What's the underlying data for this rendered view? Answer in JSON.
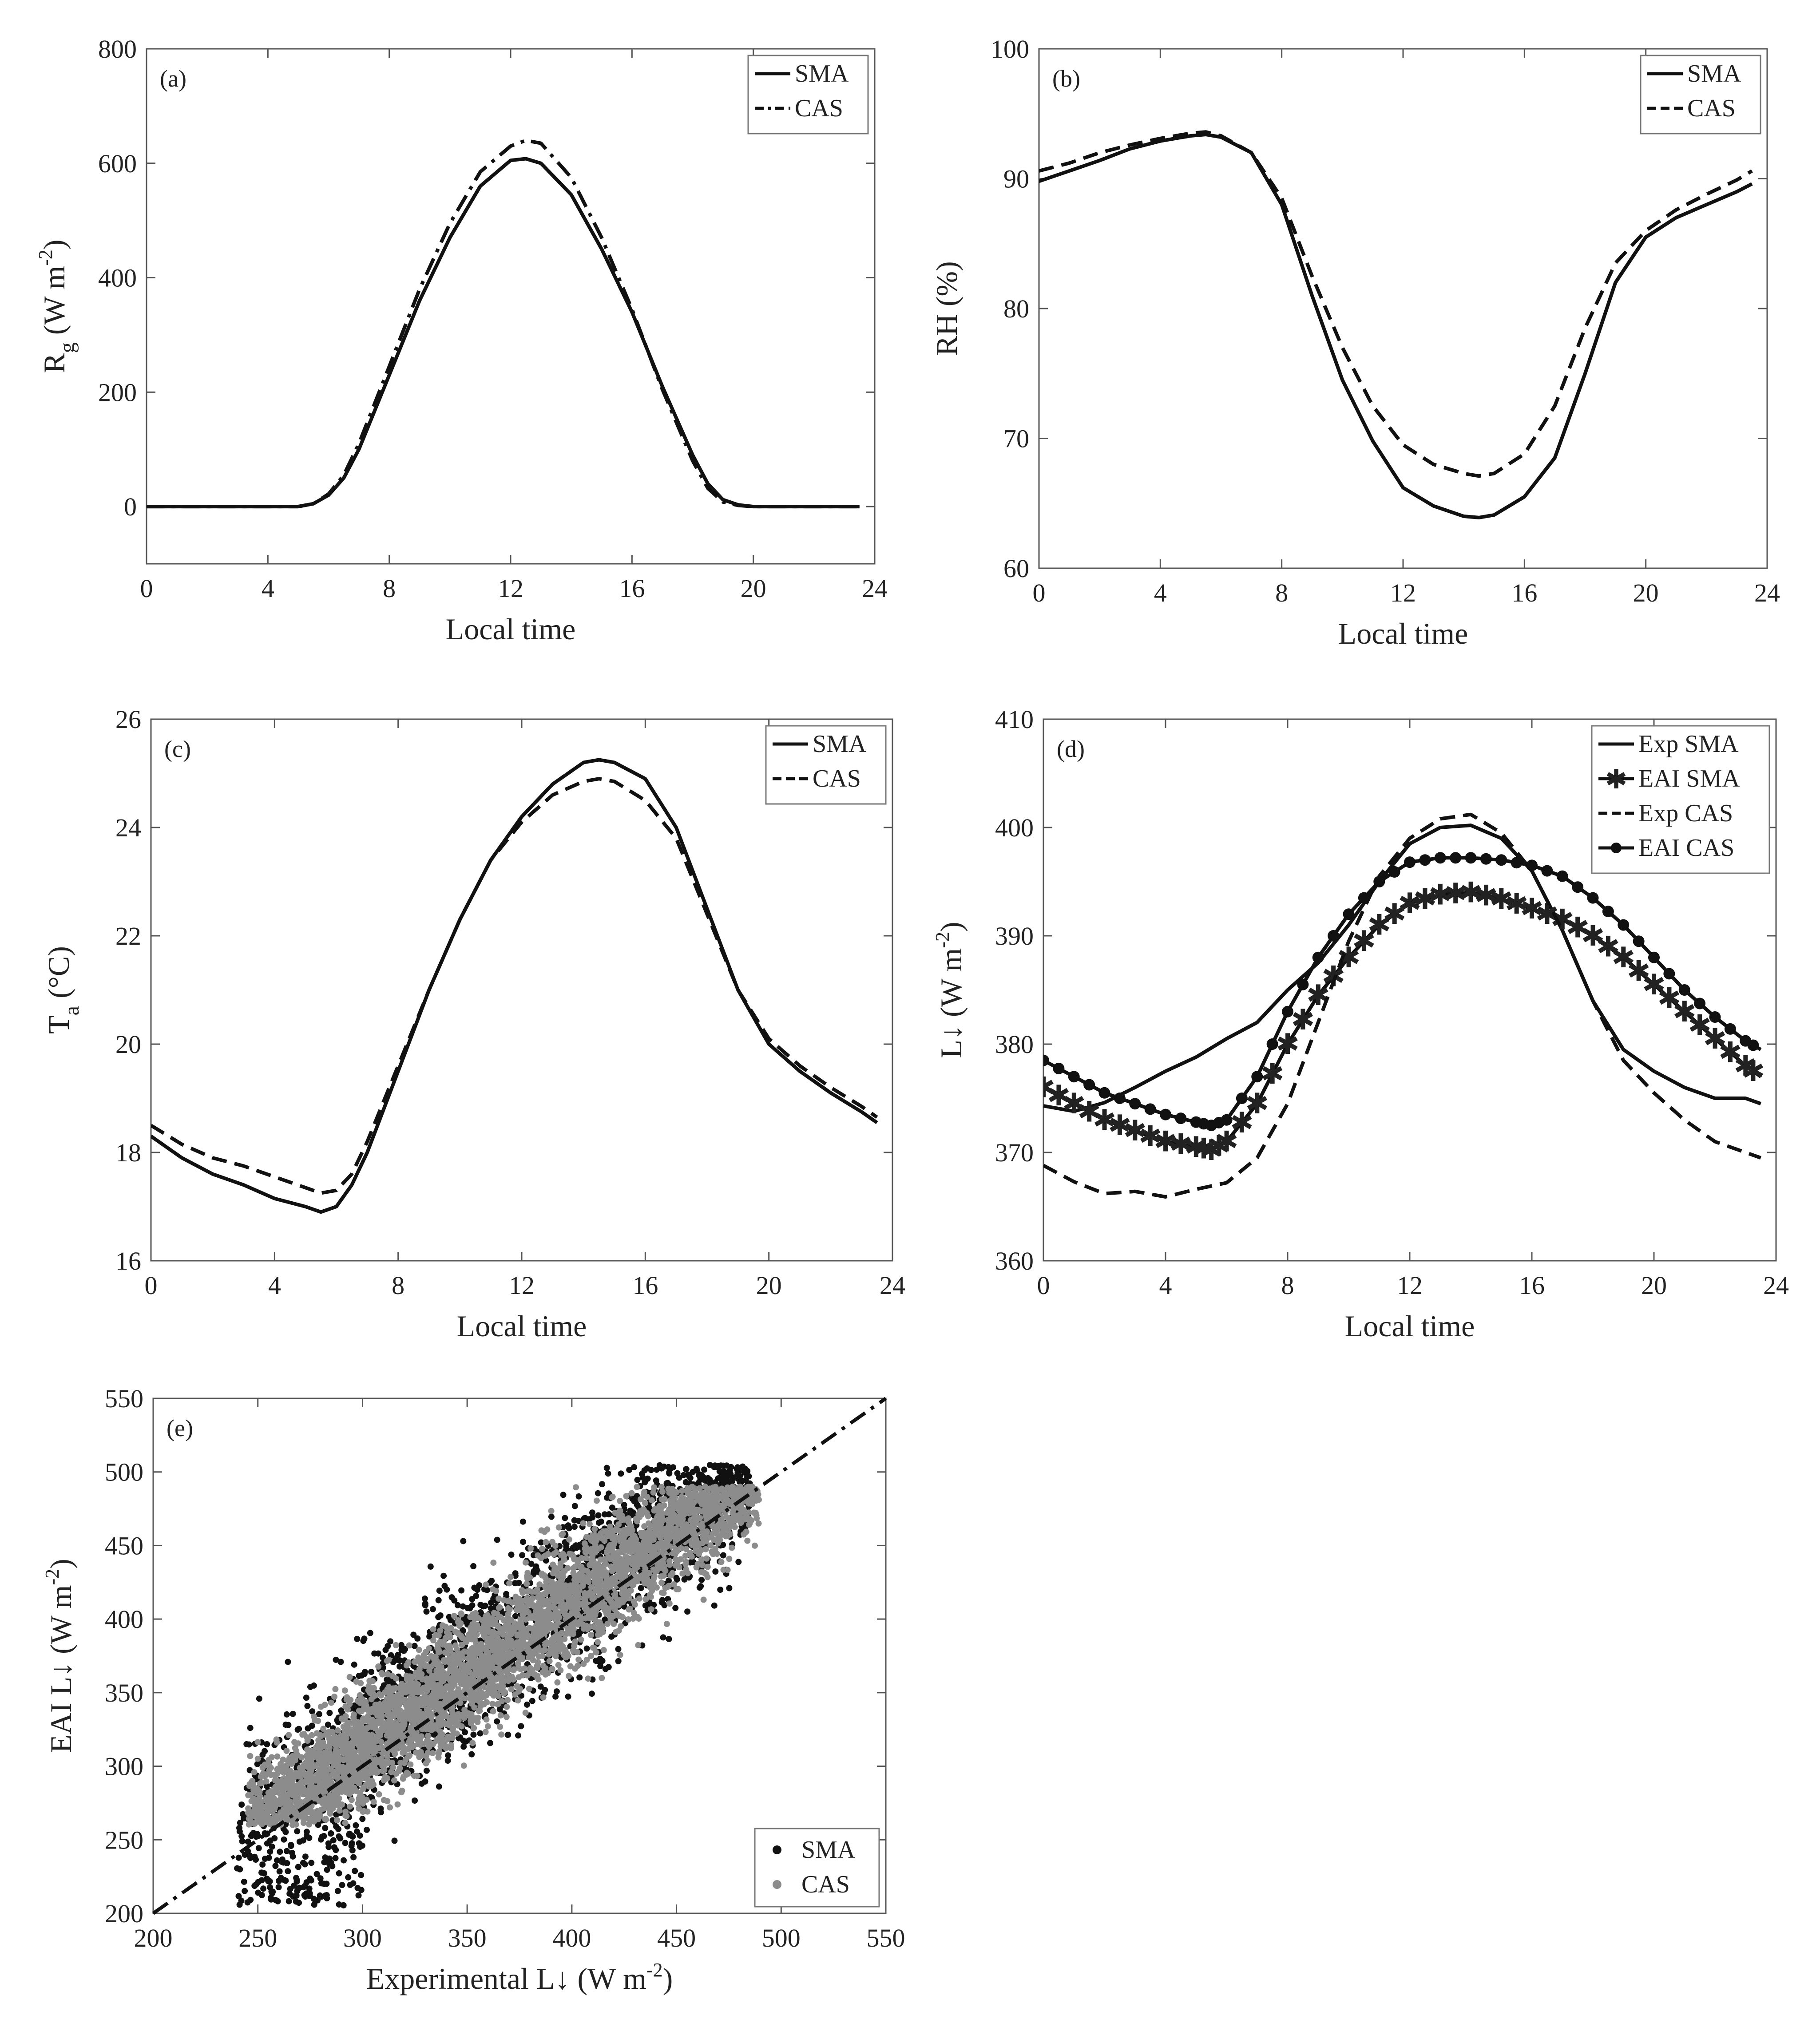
{
  "chart_data": [
    {
      "id": "a",
      "type": "line",
      "panel_label": "(a)",
      "xlabel": "Local time",
      "ylabel_main": "R",
      "ylabel_sub": "g",
      "ylabel_unit": " (W m",
      "ylabel_sup": "-2",
      "ylabel_end": ")",
      "xlim": [
        0,
        24
      ],
      "ylim": [
        -100,
        800
      ],
      "xticks": [
        0,
        4,
        8,
        12,
        16,
        20,
        24
      ],
      "yticks": [
        0,
        200,
        400,
        600,
        800
      ],
      "legend": [
        "SMA",
        "CAS"
      ],
      "series": [
        {
          "name": "SMA",
          "style": "solid",
          "x": [
            0,
            4,
            5,
            5.5,
            6,
            6.5,
            7,
            8,
            9,
            10,
            11,
            12,
            12.5,
            13,
            14,
            15,
            16,
            17,
            18,
            18.5,
            19,
            19.5,
            20,
            21,
            22,
            23,
            23.5
          ],
          "y": [
            0,
            0,
            0,
            5,
            20,
            50,
            100,
            230,
            360,
            470,
            560,
            605,
            608,
            600,
            545,
            450,
            340,
            210,
            90,
            40,
            12,
            3,
            0,
            0,
            0,
            0,
            0
          ]
        },
        {
          "name": "CAS",
          "style": "dashdot",
          "x": [
            0,
            4,
            5,
            5.5,
            6,
            6.5,
            7,
            8,
            9,
            10,
            11,
            12,
            12.5,
            13,
            14,
            15,
            16,
            17,
            18,
            18.5,
            19,
            19.5,
            20,
            21,
            22,
            23,
            23.5
          ],
          "y": [
            0,
            0,
            0,
            5,
            22,
            55,
            110,
            245,
            380,
            495,
            585,
            630,
            640,
            635,
            575,
            470,
            345,
            205,
            80,
            32,
            8,
            2,
            0,
            0,
            0,
            0,
            0
          ]
        }
      ]
    },
    {
      "id": "b",
      "type": "line",
      "panel_label": "(b)",
      "xlabel": "Local time",
      "ylabel": "RH (%)",
      "xlim": [
        0,
        24
      ],
      "ylim": [
        60,
        100
      ],
      "xticks": [
        0,
        4,
        8,
        12,
        16,
        20,
        24
      ],
      "yticks": [
        60,
        70,
        80,
        90,
        100
      ],
      "legend": [
        "SMA",
        "CAS"
      ],
      "series": [
        {
          "name": "SMA",
          "style": "solid",
          "x": [
            0,
            1,
            2,
            3,
            4,
            5,
            5.5,
            6,
            7,
            8,
            9,
            10,
            11,
            12,
            13,
            14,
            14.5,
            15,
            16,
            17,
            18,
            19,
            20,
            21,
            22,
            23,
            23.5
          ],
          "y": [
            89.8,
            90.6,
            91.4,
            92.3,
            92.9,
            93.3,
            93.4,
            93.2,
            92.0,
            88.0,
            81.0,
            74.5,
            69.8,
            66.2,
            64.8,
            64.0,
            63.9,
            64.1,
            65.5,
            68.5,
            75.0,
            82.0,
            85.5,
            87.0,
            88.0,
            89.0,
            89.6
          ]
        },
        {
          "name": "CAS",
          "style": "dashed",
          "x": [
            0,
            1,
            2,
            3,
            4,
            5,
            5.5,
            6,
            7,
            8,
            9,
            10,
            11,
            12,
            13,
            14,
            14.5,
            15,
            16,
            17,
            18,
            19,
            20,
            21,
            22,
            23,
            23.5
          ],
          "y": [
            90.6,
            91.2,
            92.0,
            92.6,
            93.1,
            93.5,
            93.6,
            93.3,
            92.0,
            88.5,
            82.5,
            77.0,
            72.5,
            69.5,
            68.0,
            67.3,
            67.1,
            67.3,
            68.8,
            72.5,
            78.5,
            83.5,
            86.0,
            87.6,
            88.8,
            89.9,
            90.6
          ]
        }
      ]
    },
    {
      "id": "c",
      "type": "line",
      "panel_label": "(c)",
      "xlabel": "Local time",
      "ylabel_main": "T",
      "ylabel_sub": "a",
      "ylabel_unit": " (°C)",
      "xlim": [
        0,
        24
      ],
      "ylim": [
        16,
        26
      ],
      "xticks": [
        0,
        4,
        8,
        12,
        16,
        20,
        24
      ],
      "yticks": [
        16,
        18,
        20,
        22,
        24,
        26
      ],
      "legend": [
        "SMA",
        "CAS"
      ],
      "series": [
        {
          "name": "SMA",
          "style": "solid",
          "x": [
            0,
            1,
            2,
            3,
            4,
            5,
            5.5,
            6,
            6.5,
            7,
            8,
            9,
            10,
            11,
            12,
            13,
            14,
            14.5,
            15,
            16,
            17,
            18,
            19,
            20,
            21,
            22,
            23,
            23.5
          ],
          "y": [
            18.3,
            17.9,
            17.6,
            17.4,
            17.15,
            17.0,
            16.9,
            17.0,
            17.4,
            18.0,
            19.5,
            21.0,
            22.3,
            23.4,
            24.2,
            24.8,
            25.2,
            25.25,
            25.2,
            24.9,
            24.0,
            22.5,
            21.0,
            20.0,
            19.5,
            19.1,
            18.75,
            18.55
          ]
        },
        {
          "name": "CAS",
          "style": "dashed",
          "x": [
            0,
            1,
            2,
            3,
            4,
            5,
            5.5,
            6,
            6.5,
            7,
            8,
            9,
            10,
            11,
            12,
            13,
            14,
            14.5,
            15,
            16,
            17,
            18,
            19,
            20,
            21,
            22,
            23,
            23.5
          ],
          "y": [
            18.5,
            18.15,
            17.9,
            17.75,
            17.55,
            17.35,
            17.25,
            17.3,
            17.6,
            18.2,
            19.6,
            21.0,
            22.3,
            23.4,
            24.1,
            24.6,
            24.85,
            24.9,
            24.85,
            24.5,
            23.8,
            22.4,
            21.0,
            20.1,
            19.6,
            19.2,
            18.85,
            18.65
          ]
        }
      ]
    },
    {
      "id": "d",
      "type": "line",
      "panel_label": "(d)",
      "xlabel": "Local time",
      "ylabel_main": "L↓ (W m",
      "ylabel_sup": "-2",
      "ylabel_end": ")",
      "xlim": [
        0,
        24
      ],
      "ylim": [
        360,
        410
      ],
      "xticks": [
        0,
        4,
        8,
        12,
        16,
        20,
        24
      ],
      "yticks": [
        360,
        370,
        380,
        390,
        400,
        410
      ],
      "legend": [
        "Exp SMA",
        "EAI SMA",
        "Exp CAS",
        "EAI CAS"
      ],
      "series": [
        {
          "name": "Exp SMA",
          "style": "solid",
          "x": [
            0,
            1,
            2,
            3,
            4,
            5,
            6,
            7,
            8,
            9,
            10,
            11,
            12,
            13,
            14,
            15,
            16,
            17,
            18,
            19,
            20,
            21,
            22,
            23,
            23.5
          ],
          "y": [
            374.3,
            373.8,
            374.6,
            376.0,
            377.5,
            378.8,
            380.5,
            382.0,
            385.0,
            387.5,
            391.0,
            395.0,
            398.5,
            400.0,
            400.2,
            399.0,
            396.0,
            390.5,
            384.0,
            379.5,
            377.5,
            376.0,
            375.0,
            375.0,
            374.5
          ]
        },
        {
          "name": "EAI SMA",
          "style": "star",
          "x": [
            0,
            1,
            2,
            3,
            4,
            5,
            5.5,
            6,
            7,
            8,
            9,
            10,
            11,
            12,
            13,
            14,
            15,
            16,
            17,
            18,
            19,
            20,
            21,
            22,
            23,
            23.5
          ],
          "y": [
            376.0,
            374.5,
            373.0,
            372.0,
            371.0,
            370.5,
            370.2,
            371.0,
            374.5,
            380.0,
            384.5,
            388.0,
            391.0,
            393.0,
            393.8,
            394.0,
            393.4,
            392.5,
            391.5,
            390.0,
            388.0,
            385.5,
            383.0,
            380.5,
            378.0,
            377.0
          ]
        },
        {
          "name": "Exp CAS",
          "style": "dashed",
          "x": [
            0,
            1,
            2,
            3,
            4,
            5,
            6,
            7,
            8,
            9,
            10,
            11,
            12,
            13,
            14,
            15,
            16,
            17,
            18,
            19,
            20,
            21,
            22,
            23,
            23.5
          ],
          "y": [
            368.8,
            367.3,
            366.2,
            366.4,
            365.9,
            366.6,
            367.2,
            369.5,
            374.5,
            382.0,
            389.5,
            395.5,
            399.0,
            400.8,
            401.2,
            399.5,
            396.0,
            390.5,
            384.0,
            378.5,
            375.5,
            373.0,
            371.0,
            370.0,
            369.5
          ]
        },
        {
          "name": "EAI CAS",
          "style": "dot",
          "x": [
            0,
            1,
            2,
            3,
            4,
            5,
            5.5,
            6,
            7,
            8,
            9,
            10,
            11,
            12,
            13,
            14,
            15,
            16,
            17,
            18,
            19,
            20,
            21,
            22,
            23,
            23.5
          ],
          "y": [
            378.5,
            377.0,
            375.5,
            374.5,
            373.5,
            372.8,
            372.5,
            373.0,
            377.0,
            383.0,
            388.0,
            392.0,
            395.0,
            396.8,
            397.2,
            397.2,
            397.0,
            396.5,
            395.5,
            393.5,
            391.0,
            388.0,
            385.0,
            382.5,
            380.3,
            379.5
          ]
        }
      ]
    },
    {
      "id": "e",
      "type": "scatter",
      "panel_label": "(e)",
      "xlabel_main": "Experimental L↓ (W m",
      "xlabel_sup": "-2",
      "xlabel_end": ")",
      "ylabel_main": "EAI  L↓ (W m",
      "ylabel_sup": "-2",
      "ylabel_end": ")",
      "xlim": [
        200,
        550
      ],
      "ylim": [
        200,
        550
      ],
      "xticks": [
        200,
        250,
        300,
        350,
        400,
        450,
        500,
        550
      ],
      "yticks": [
        200,
        250,
        300,
        350,
        400,
        450,
        500,
        550
      ],
      "legend": [
        "SMA",
        "CAS"
      ],
      "reference_line": {
        "x": [
          200,
          550
        ],
        "y": [
          200,
          550
        ]
      },
      "series": [
        {
          "name": "SMA",
          "color": "#111111",
          "x_range": [
            240,
            485
          ],
          "y_range": [
            205,
            505
          ],
          "description_fit": "dense cloud along 1:1"
        },
        {
          "name": "CAS",
          "color": "#8c8c8c",
          "x_range": [
            245,
            490
          ],
          "y_range": [
            260,
            490
          ],
          "description_fit": "dense cloud along 1:1"
        }
      ]
    }
  ]
}
